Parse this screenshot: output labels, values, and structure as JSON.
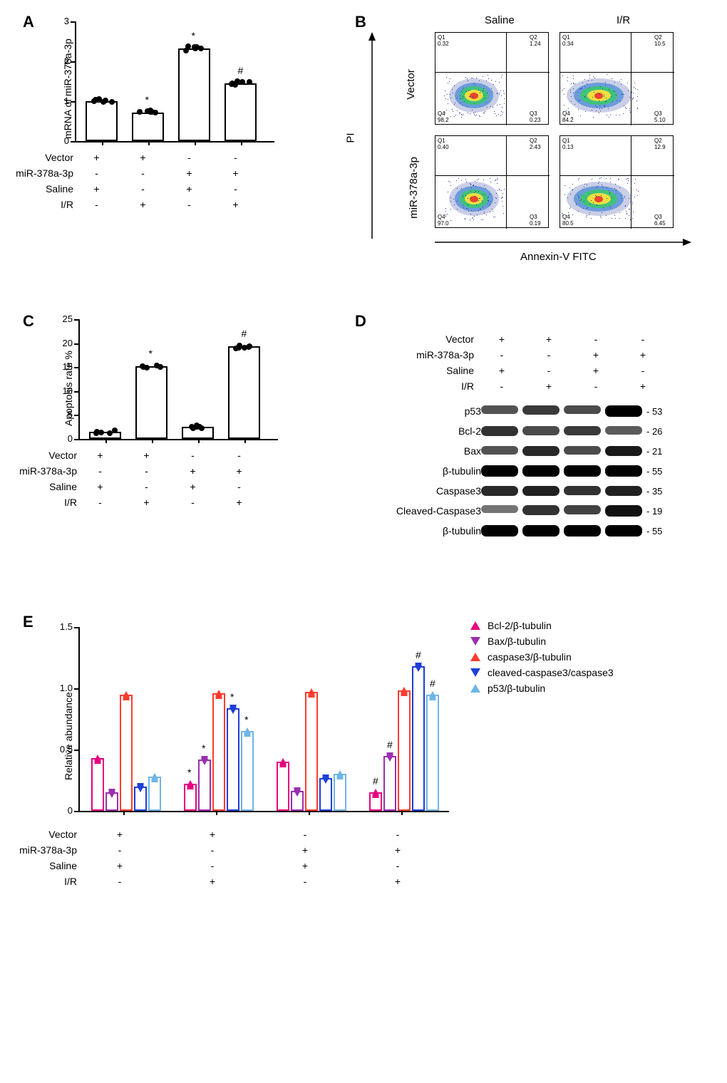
{
  "panelA": {
    "label": "A",
    "ylabel": "mRNA of miR-378a-3p",
    "ymax": 3,
    "yticks": [
      0,
      1,
      2,
      3
    ],
    "bars": [
      {
        "value": 1.0,
        "sig": ""
      },
      {
        "value": 0.72,
        "sig": "*"
      },
      {
        "value": 2.32,
        "sig": "*"
      },
      {
        "value": 1.45,
        "sig": "#"
      }
    ],
    "treatments": {
      "rows": [
        {
          "label": "Vector",
          "vals": [
            "+",
            "+",
            "-",
            "-"
          ]
        },
        {
          "label": "miR-378a-3p",
          "vals": [
            "-",
            "-",
            "+",
            "+"
          ]
        },
        {
          "label": "Saline",
          "vals": [
            "+",
            "-",
            "+",
            "-"
          ]
        },
        {
          "label": "I/R",
          "vals": [
            "-",
            "+",
            "-",
            "+"
          ]
        }
      ]
    }
  },
  "panelB": {
    "label": "B",
    "colLabels": [
      "Saline",
      "I/R"
    ],
    "rowLabels": [
      "Vector",
      "miR-378a-3p"
    ],
    "xAxisLabel": "Annexin-V FITC",
    "yAxisLabel": "PI",
    "cells": [
      {
        "q1": "0.32",
        "q2": "1.24",
        "q3": "0.23",
        "q4": "98.2"
      },
      {
        "q1": "0.34",
        "q2": "10.5",
        "q3": "5.10",
        "q4": "84.2"
      },
      {
        "q1": "0.40",
        "q2": "2.43",
        "q3": "0.19",
        "q4": "97.0"
      },
      {
        "q1": "0.13",
        "q2": "12.9",
        "q3": "6.45",
        "q4": "80.5"
      }
    ]
  },
  "panelC": {
    "label": "C",
    "ylabel": "Apoptosis rate %",
    "ymax": 25,
    "yticks": [
      0,
      5,
      10,
      15,
      20,
      25
    ],
    "bars": [
      {
        "value": 1.5,
        "sig": ""
      },
      {
        "value": 15.2,
        "sig": "*"
      },
      {
        "value": 2.6,
        "sig": ""
      },
      {
        "value": 19.3,
        "sig": "#"
      }
    ],
    "treatments": {
      "rows": [
        {
          "label": "Vector",
          "vals": [
            "+",
            "+",
            "-",
            "-"
          ]
        },
        {
          "label": "miR-378a-3p",
          "vals": [
            "-",
            "-",
            "+",
            "+"
          ]
        },
        {
          "label": "Saline",
          "vals": [
            "+",
            "-",
            "+",
            "-"
          ]
        },
        {
          "label": "I/R",
          "vals": [
            "-",
            "+",
            "-",
            "+"
          ]
        }
      ]
    }
  },
  "panelD": {
    "label": "D",
    "treatments": {
      "rows": [
        {
          "label": "Vector",
          "vals": [
            "+",
            "+",
            "-",
            "-"
          ]
        },
        {
          "label": "miR-378a-3p",
          "vals": [
            "-",
            "-",
            "+",
            "+"
          ]
        },
        {
          "label": "Saline",
          "vals": [
            "+",
            "-",
            "+",
            "-"
          ]
        },
        {
          "label": "I/R",
          "vals": [
            "-",
            "+",
            "-",
            "+"
          ]
        }
      ]
    },
    "blots": [
      {
        "name": "p53",
        "mw": "- 53",
        "intensities": [
          0.5,
          0.65,
          0.55,
          1.0
        ]
      },
      {
        "name": "Bcl-2",
        "mw": "- 26",
        "intensities": [
          0.7,
          0.55,
          0.65,
          0.45
        ]
      },
      {
        "name": "Bax",
        "mw": "- 21",
        "intensities": [
          0.5,
          0.75,
          0.55,
          0.85
        ]
      },
      {
        "name": "β-tubulin",
        "mw": "- 55",
        "intensities": [
          1.0,
          1.0,
          1.0,
          1.0
        ]
      },
      {
        "name": "Caspase3",
        "mw": "- 35",
        "intensities": [
          0.75,
          0.8,
          0.7,
          0.8
        ]
      },
      {
        "name": "Cleaved-Caspase3",
        "mw": "- 19",
        "intensities": [
          0.3,
          0.7,
          0.6,
          0.9
        ]
      },
      {
        "name": "β-tubulin",
        "mw": "- 55",
        "intensities": [
          1.0,
          1.0,
          1.0,
          1.0
        ]
      }
    ]
  },
  "panelE": {
    "label": "E",
    "ylabel": "Relative abundance",
    "ymax": 1.5,
    "yticks": [
      "0",
      "0.5",
      "1.0",
      "1.5"
    ],
    "legend": [
      {
        "label": "Bcl-2/β-tubulin",
        "color": "#e6007e",
        "shape": "up"
      },
      {
        "label": "Bax/β-tubulin",
        "color": "#9b2fae",
        "shape": "down"
      },
      {
        "label": "caspase3/β-tubulin",
        "color": "#ff3b2f",
        "shape": "up"
      },
      {
        "label": "cleaved-caspase3/caspase3",
        "color": "#1e3fd8",
        "shape": "down"
      },
      {
        "label": "p53/β-tubulin",
        "color": "#6fb5e8",
        "shape": "up"
      }
    ],
    "groups": [
      {
        "values": [
          0.43,
          0.15,
          0.95,
          0.2,
          0.28
        ],
        "sigs": [
          "",
          "",
          "",
          "",
          ""
        ]
      },
      {
        "values": [
          0.22,
          0.42,
          0.96,
          0.84,
          0.65
        ],
        "sigs": [
          "*",
          "*",
          "",
          "*",
          "*"
        ]
      },
      {
        "values": [
          0.4,
          0.16,
          0.97,
          0.27,
          0.3
        ],
        "sigs": [
          "",
          "",
          "",
          "",
          ""
        ]
      },
      {
        "values": [
          0.15,
          0.45,
          0.98,
          1.18,
          0.95
        ],
        "sigs": [
          "#",
          "#",
          "",
          "#",
          "#"
        ]
      }
    ],
    "treatments": {
      "rows": [
        {
          "label": "Vector",
          "vals": [
            "+",
            "-",
            "-",
            "-"
          ]
        },
        {
          "label": "miR-378a-3p",
          "vals": [
            "-",
            "-",
            "+",
            "+"
          ]
        },
        {
          "label": "Saline",
          "vals": [
            "+",
            "-",
            "+",
            "-"
          ]
        },
        {
          "label": "I/R",
          "vals": [
            "-",
            "+",
            "-",
            "+"
          ]
        }
      ]
    },
    "treatments_real": {
      "rows": [
        {
          "label": "Vector",
          "vals": [
            "+",
            "+",
            "-",
            "-"
          ]
        },
        {
          "label": "miR-378a-3p",
          "vals": [
            "-",
            "-",
            "+",
            "+"
          ]
        },
        {
          "label": "Saline",
          "vals": [
            "+",
            "-",
            "+",
            "-"
          ]
        },
        {
          "label": "I/R",
          "vals": [
            "-",
            "+",
            "-",
            "+"
          ]
        }
      ]
    }
  }
}
